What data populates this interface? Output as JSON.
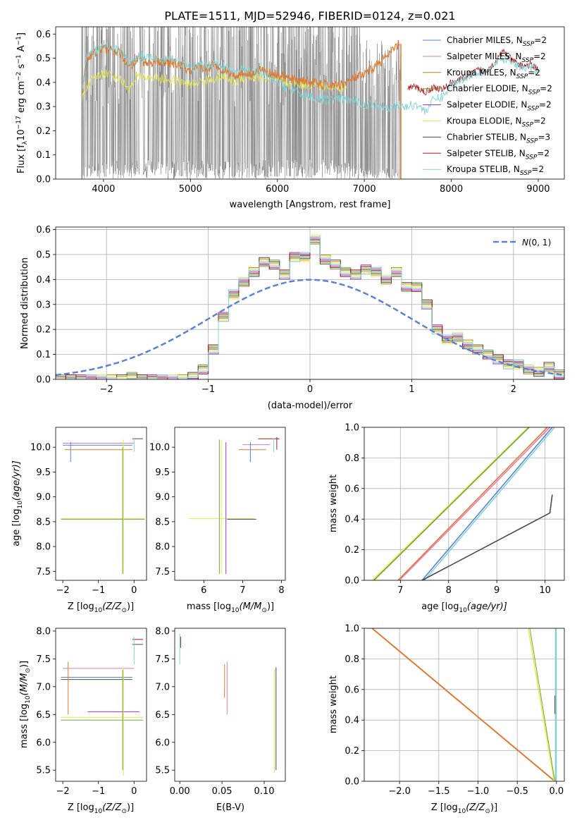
{
  "title": "PLATE=1511, MJD=52946, FIBERID=0124, z=0.021",
  "colors": {
    "Chabrier MILES": "#5b82d6",
    "Salpeter MILES": "#e879b4",
    "Kroupa MILES": "#b8870b",
    "Chabrier ELODIE": "#6aaa3a",
    "Salpeter ELODIE": "#9b30c8",
    "Kroupa ELODIE": "#e8e84a",
    "Chabrier STELIB": "#4a4a4a",
    "Salpeter STELIB": "#b01818",
    "Kroupa STELIB": "#7fd4d8",
    "data": "#808080",
    "orange": "#e07a30",
    "gauss": "#5b82d6"
  },
  "chart_data": [
    {
      "id": "spectrum",
      "type": "line",
      "title": "PLATE=1511, MJD=52946, FIBERID=0124, z=0.021",
      "xlabel": "wavelength [Angstrom, rest frame]",
      "ylabel": "Flux [f$_\\lambda$10$^{-17}$ erg cm$^{-2}$ s$^{-1}$ A$^{-1}$]",
      "ylabel_parts": {
        "flux": "Flux [f",
        "lam": "λ",
        "ten": "10",
        "e17": "−17",
        "erg": " erg cm",
        "m2": "−2",
        "s": " s",
        "m1a": "−1",
        "A": " A",
        "m1b": "−1",
        "close": "]"
      },
      "xlim": [
        3450,
        9300
      ],
      "ylim": [
        0,
        0.63
      ],
      "xticks": [
        4000,
        5000,
        6000,
        7000,
        8000,
        9000
      ],
      "yticks": [
        0.0,
        0.1,
        0.2,
        0.3,
        0.4,
        0.5,
        0.6
      ],
      "ytick_labels": [
        "0.0",
        "0.1",
        "0.2",
        "0.3",
        "0.4",
        "0.5",
        "0.6"
      ],
      "legend_loc": "upper right",
      "legend": [
        {
          "name": "Chabrier MILES",
          "sub": "SSP",
          "n": "2"
        },
        {
          "name": "Salpeter MILES",
          "sub": "SSP",
          "n": "2"
        },
        {
          "name": "Kroupa MILES",
          "sub": "SSP",
          "n": "2"
        },
        {
          "name": "Chabrier ELODIE",
          "sub": "SSP",
          "n": "2"
        },
        {
          "name": "Salpeter ELODIE",
          "sub": "SSP",
          "n": "2"
        },
        {
          "name": "Kroupa ELODIE",
          "sub": "SSP",
          "n": "2"
        },
        {
          "name": "Chabrier STELIB",
          "sub": "SSP",
          "n": "3"
        },
        {
          "name": "Salpeter STELIB",
          "sub": "SSP",
          "n": "2"
        },
        {
          "name": "Kroupa STELIB",
          "sub": "SSP",
          "n": "2"
        }
      ],
      "series": [
        {
          "key": "MILES",
          "x": [
            3750,
            3800,
            3900,
            4000,
            4100,
            4200,
            4300,
            4400,
            4500,
            4600,
            4700,
            4800,
            4900,
            5000,
            5100,
            5200,
            5300,
            5400,
            5500,
            5600,
            5700,
            5800,
            5900,
            6000,
            6100,
            6200,
            6300,
            6400,
            6500,
            6600,
            6700,
            6800,
            6900,
            7000,
            7100,
            7200,
            7300,
            7400
          ],
          "y": [
            0.34,
            0.5,
            0.52,
            0.54,
            0.53,
            0.52,
            0.46,
            0.5,
            0.48,
            0.49,
            0.48,
            0.48,
            0.47,
            0.44,
            0.46,
            0.46,
            0.47,
            0.45,
            0.43,
            0.44,
            0.44,
            0.45,
            0.44,
            0.43,
            0.42,
            0.41,
            0.41,
            0.4,
            0.39,
            0.39,
            0.39,
            0.4,
            0.42,
            0.43,
            0.46,
            0.49,
            0.52,
            0.56
          ]
        },
        {
          "key": "ELODIE",
          "x": [
            3750,
            3800,
            3900,
            4000,
            4100,
            4200,
            4300,
            4400,
            4500,
            4600,
            4700,
            4800,
            4900,
            5000,
            5100,
            5200,
            5300,
            5400,
            5500,
            5600,
            5700,
            5800,
            5900,
            6000,
            6100,
            6200,
            6300,
            6400,
            6500,
            6600,
            6700,
            6800
          ],
          "y": [
            0.33,
            0.38,
            0.42,
            0.44,
            0.43,
            0.41,
            0.37,
            0.43,
            0.42,
            0.42,
            0.41,
            0.41,
            0.4,
            0.39,
            0.4,
            0.41,
            0.42,
            0.42,
            0.4,
            0.42,
            0.42,
            0.42,
            0.41,
            0.41,
            0.4,
            0.4,
            0.39,
            0.39,
            0.38,
            0.38,
            0.38,
            0.38
          ]
        },
        {
          "key": "STELIB",
          "x": [
            3750,
            3800,
            3900,
            4000,
            4100,
            4200,
            4300,
            4400,
            4500,
            4600,
            4700,
            4800,
            4900,
            5000,
            5100,
            5200,
            5300,
            5400,
            5500,
            5600,
            5700,
            5800,
            5900,
            6000,
            6100,
            6200,
            6300,
            6400,
            6500,
            6600,
            6700,
            6800,
            6900,
            7000,
            7100,
            7200,
            7300,
            7400,
            7500,
            7600,
            7700,
            7800,
            7900,
            8000,
            8100,
            8200,
            8300,
            8400,
            8500,
            8600,
            8700,
            8800,
            8900,
            9000
          ],
          "y": [
            0.35,
            0.5,
            0.53,
            0.55,
            0.54,
            0.53,
            0.47,
            0.51,
            0.5,
            0.5,
            0.49,
            0.5,
            0.48,
            0.46,
            0.47,
            0.47,
            0.48,
            0.46,
            0.44,
            0.45,
            0.45,
            0.44,
            0.42,
            0.4,
            0.38,
            0.36,
            0.35,
            0.34,
            0.33,
            0.33,
            0.33,
            0.33,
            0.32,
            0.31,
            0.31,
            0.3,
            0.3,
            0.3,
            0.3,
            0.31,
            0.28,
            0.33,
            0.34,
            0.39,
            0.41,
            0.43,
            0.44,
            0.45,
            0.47,
            0.5,
            0.48,
            0.46,
            0.46,
            0.45
          ]
        },
        {
          "key": "STELIB_red",
          "x": [
            7500,
            7600,
            7700,
            7800,
            7900,
            8000,
            8100,
            8200,
            8300,
            8400,
            8500,
            8600,
            8700,
            8800,
            8900,
            9000
          ],
          "y": [
            0.38,
            0.38,
            0.36,
            0.38,
            0.37,
            0.4,
            0.41,
            0.43,
            0.45,
            0.45,
            0.48,
            0.53,
            0.49,
            0.47,
            0.47,
            0.46
          ]
        }
      ]
    },
    {
      "id": "residuals",
      "type": "step",
      "xlabel": "(data-model)/error",
      "ylabel": "Normed distribution",
      "xlim": [
        -2.5,
        2.5
      ],
      "ylim": [
        0,
        0.61
      ],
      "xticks": [
        -2,
        -1,
        0,
        1,
        2
      ],
      "xtick_labels": [
        "−2",
        "−1",
        "0",
        "1",
        "2"
      ],
      "yticks": [
        0.0,
        0.1,
        0.2,
        0.3,
        0.4,
        0.5,
        0.6
      ],
      "ytick_labels": [
        "0.0",
        "0.1",
        "0.2",
        "0.3",
        "0.4",
        "0.5",
        "0.6"
      ],
      "grid": true,
      "legend": {
        "label_cal": "N",
        "label_args": "(0, 1)"
      },
      "bin_edges": [
        -2.5,
        -2.4,
        -2.3,
        -2.2,
        -2.1,
        -2.0,
        -1.9,
        -1.8,
        -1.7,
        -1.6,
        -1.5,
        -1.4,
        -1.3,
        -1.2,
        -1.1,
        -1.0,
        -0.9,
        -0.8,
        -0.7,
        -0.6,
        -0.5,
        -0.4,
        -0.3,
        -0.2,
        -0.1,
        0.0,
        0.1,
        0.2,
        0.3,
        0.4,
        0.5,
        0.6,
        0.7,
        0.8,
        0.9,
        1.0,
        1.1,
        1.2,
        1.3,
        1.4,
        1.5,
        1.6,
        1.7,
        1.8,
        1.9,
        2.0,
        2.1,
        2.2,
        2.3,
        2.4,
        2.5
      ],
      "hist_values": [
        0.0,
        0.0,
        0.0,
        0.0,
        0.0,
        0.0,
        0.0,
        0.01,
        0.0,
        0.0,
        0.0,
        0.0,
        0.0,
        0.01,
        0.04,
        0.12,
        0.25,
        0.34,
        0.39,
        0.43,
        0.47,
        0.46,
        0.42,
        0.49,
        0.49,
        0.56,
        0.48,
        0.46,
        0.43,
        0.42,
        0.44,
        0.43,
        0.4,
        0.43,
        0.37,
        0.37,
        0.3,
        0.2,
        0.16,
        0.17,
        0.14,
        0.12,
        0.1,
        0.08,
        0.06,
        0.06,
        0.04,
        0.03,
        0.05,
        0.02
      ],
      "gauss": {
        "mu": 0,
        "sigma": 1
      }
    },
    {
      "id": "age_vs_Z",
      "type": "errorbar",
      "xlabel_pre": "Z [log",
      "xlabel_sub": "10",
      "xlabel_arg": "(Z/Z",
      "xlabel_sun": "⊙",
      "xlabel_post": ")]",
      "ylabel_pre": "age  [log",
      "ylabel_sub": "10",
      "ylabel_arg": "(age/yr)]",
      "xlim": [
        -2.2,
        0.35
      ],
      "ylim": [
        7.32,
        10.4
      ],
      "xticks": [
        -2,
        -1,
        0
      ],
      "xtick_labels": [
        "−2",
        "−1",
        "0"
      ],
      "yticks": [
        7.5,
        8.0,
        8.5,
        9.0,
        9.5,
        10.0
      ],
      "ytick_labels": [
        "7.5",
        "8.0",
        "8.5",
        "9.0",
        "9.5",
        "10.0"
      ]
    },
    {
      "id": "age_vs_mass",
      "type": "errorbar",
      "xlabel_pre": "mass [log",
      "xlabel_sub": "10",
      "xlabel_arg": "(M/M",
      "xlabel_sun": "⊙",
      "xlabel_post": ")]",
      "xlim": [
        5.25,
        8.1
      ],
      "ylim": [
        7.32,
        10.4
      ],
      "xticks": [
        6,
        7,
        8
      ],
      "xtick_labels": [
        "6",
        "7",
        "8"
      ],
      "yticks": [
        7.5,
        8.0,
        8.5,
        9.0,
        9.5,
        10.0
      ],
      "ytick_labels": [
        "7.5",
        "8.0",
        "8.5",
        "9.0",
        "9.5",
        "10.0"
      ]
    },
    {
      "id": "massweight_vs_age",
      "type": "line",
      "xlabel_pre": "age  [log",
      "xlabel_sub": "10",
      "xlabel_arg": "(age/yr)]",
      "ylabel": "mass weight",
      "xlim": [
        6.25,
        10.4
      ],
      "ylim": [
        0,
        1
      ],
      "xticks": [
        7,
        8,
        9,
        10
      ],
      "xtick_labels": [
        "7",
        "8",
        "9",
        "10"
      ],
      "yticks": [
        0.0,
        0.2,
        0.4,
        0.6,
        0.8,
        1.0
      ],
      "ytick_labels": [
        "0.0",
        "0.2",
        "0.4",
        "0.6",
        "0.8",
        "1.0"
      ],
      "grid": true
    },
    {
      "id": "mass_vs_Z",
      "type": "errorbar",
      "xlabel_pre": "Z [log",
      "xlabel_sub": "10",
      "xlabel_arg": "(Z/Z",
      "xlabel_sun": "⊙",
      "xlabel_post": ")]",
      "ylabel_pre": "mass [log",
      "ylabel_sub": "10",
      "ylabel_arg": "(M/M",
      "ylabel_sun": "⊙",
      "ylabel_post": ")]",
      "xlim": [
        -2.2,
        0.35
      ],
      "ylim": [
        5.3,
        8.05
      ],
      "xticks": [
        -2,
        -1,
        0
      ],
      "xtick_labels": [
        "−2",
        "−1",
        "0"
      ],
      "yticks": [
        5.5,
        6.0,
        6.5,
        7.0,
        7.5,
        8.0
      ],
      "ytick_labels": [
        "5.5",
        "6.0",
        "6.5",
        "7.0",
        "7.5",
        "8.0"
      ]
    },
    {
      "id": "mass_vs_ebv",
      "type": "errorbar",
      "xlabel": "E(B-V)",
      "xlim": [
        -0.006,
        0.125
      ],
      "ylim": [
        5.3,
        8.05
      ],
      "xticks": [
        0.0,
        0.05,
        0.1
      ],
      "xtick_labels": [
        "0.00",
        "0.05",
        "0.10"
      ],
      "yticks": [
        5.5,
        6.0,
        6.5,
        7.0,
        7.5,
        8.0
      ],
      "ytick_labels": [
        "5.5",
        "6.0",
        "6.5",
        "7.0",
        "7.5",
        "8.0"
      ]
    },
    {
      "id": "massweight_vs_Z",
      "type": "line",
      "xlabel_pre": "Z [log",
      "xlabel_sub": "10",
      "xlabel_arg": "(Z/Z",
      "xlabel_sun": "⊙",
      "xlabel_post": ")]",
      "ylabel": "mass weight",
      "xlim": [
        -2.45,
        0.1
      ],
      "ylim": [
        0,
        1
      ],
      "xticks": [
        -2.0,
        -1.5,
        -1.0,
        -0.5,
        0.0
      ],
      "xtick_labels": [
        "−2.0",
        "−1.5",
        "−1.0",
        "−0.5",
        "0.0"
      ],
      "yticks": [
        0.0,
        0.2,
        0.4,
        0.6,
        0.8,
        1.0
      ],
      "ytick_labels": [
        "0.0",
        "0.2",
        "0.4",
        "0.6",
        "0.8",
        "1.0"
      ],
      "grid": true
    }
  ]
}
